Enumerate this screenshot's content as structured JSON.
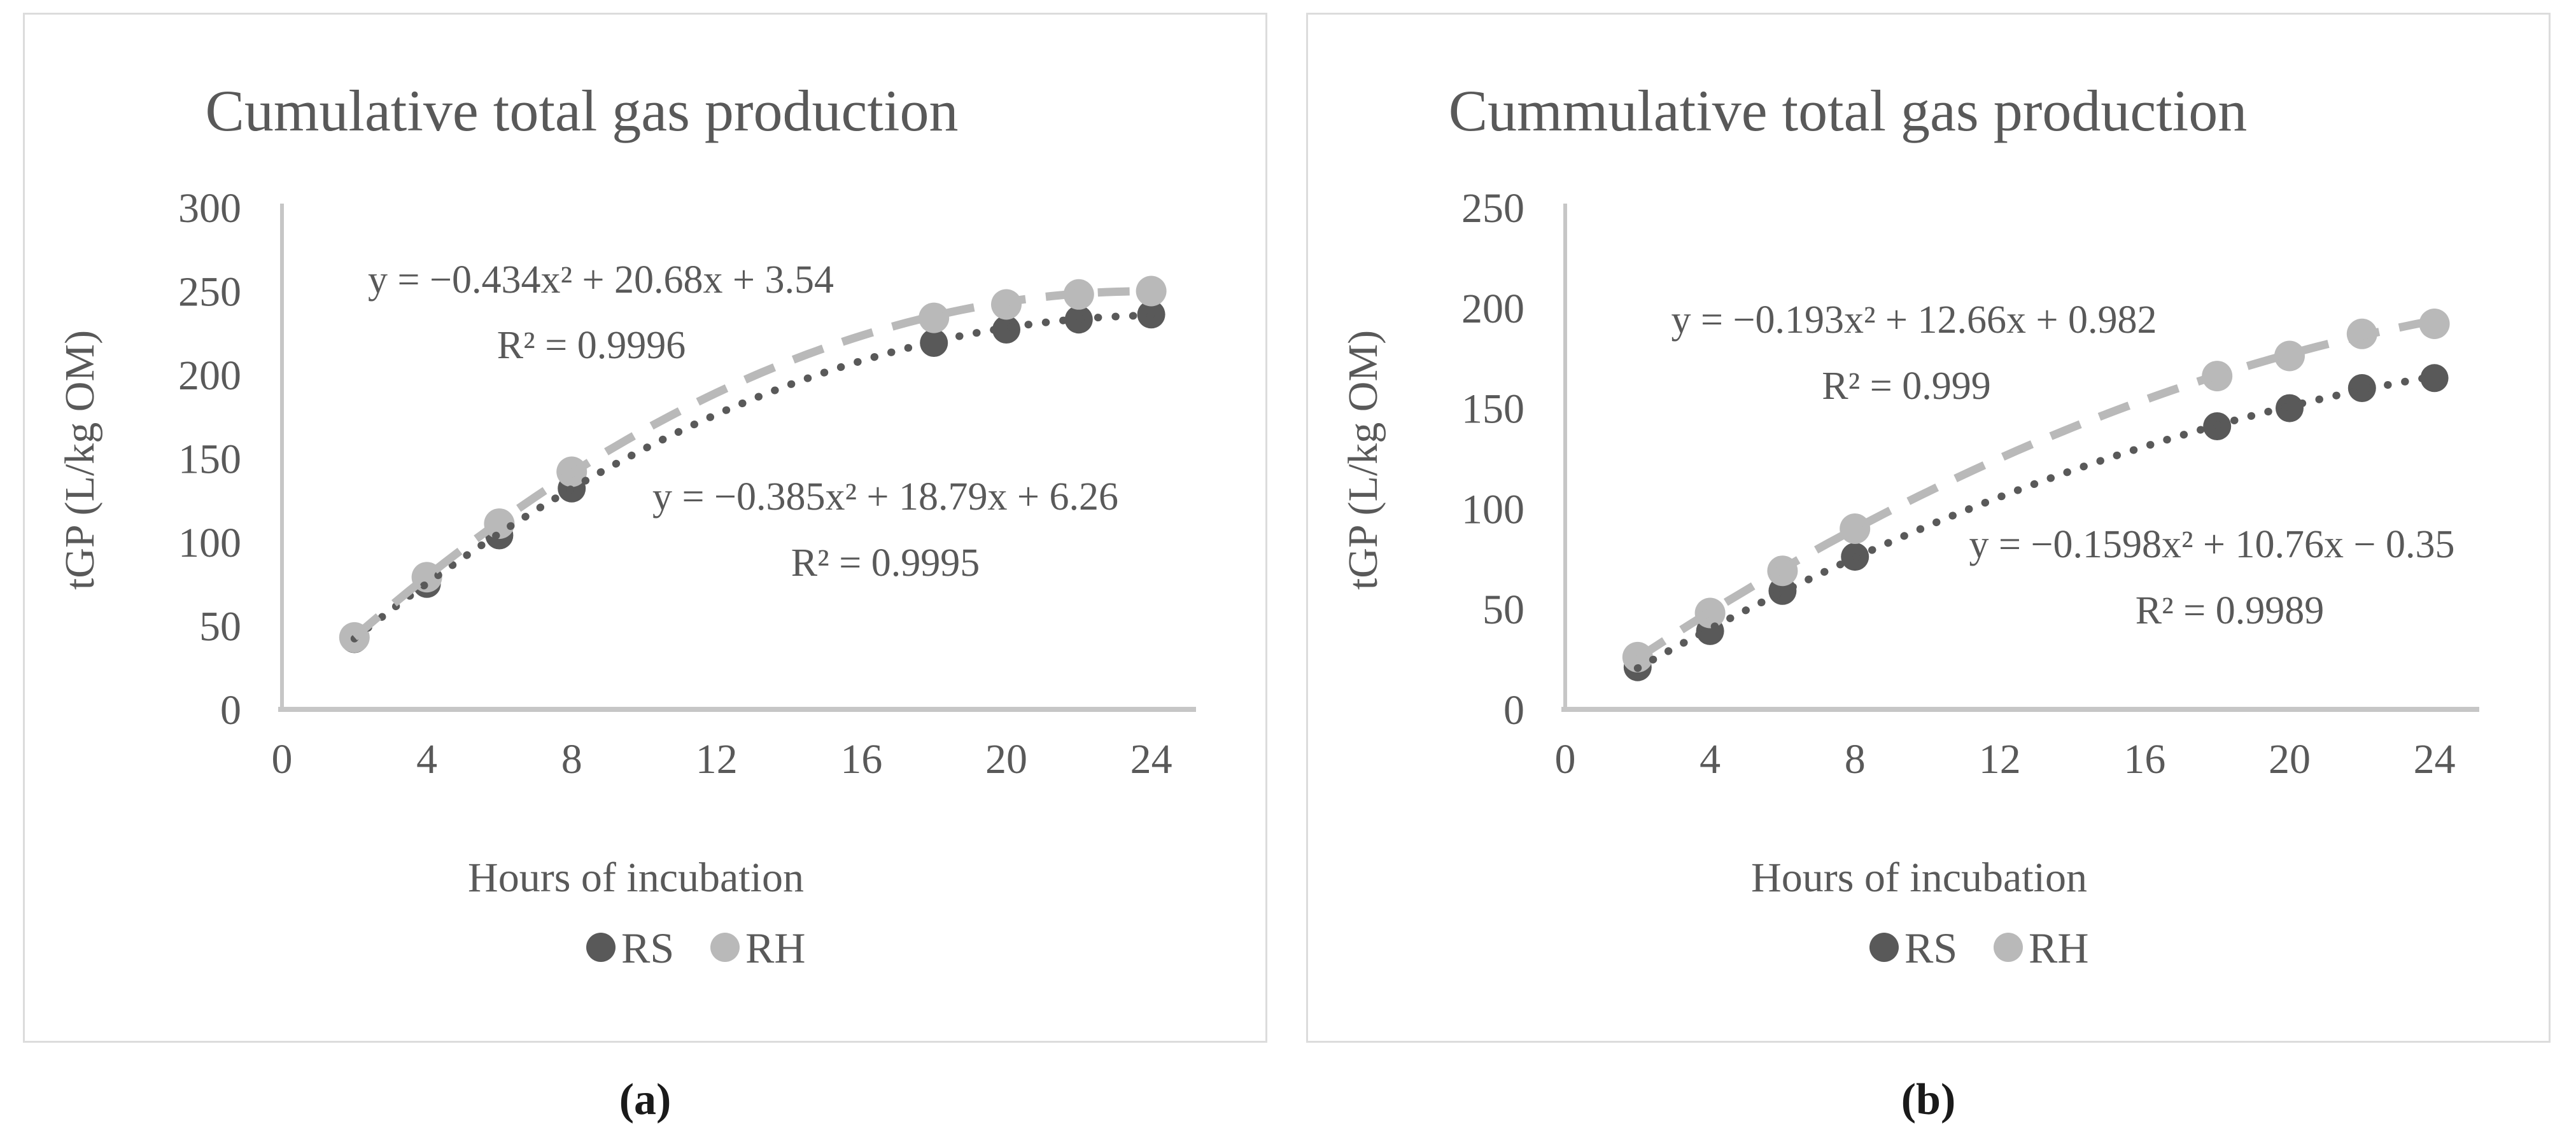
{
  "colors": {
    "rs": "#595959",
    "rh": "#b9b9b9",
    "text": "#595959",
    "axis": "#c6c6c6",
    "panel_border": "#dcdcdc"
  },
  "chart_data": [
    {
      "type": "scatter",
      "title": "Cumulative total gas production",
      "caption": "(a)",
      "xlabel": "Hours of incubation",
      "ylabel": "tGP (L/kg OM)",
      "x": [
        2,
        4,
        6,
        8,
        18,
        20,
        22,
        24
      ],
      "x_ticks": [
        0,
        4,
        8,
        12,
        16,
        20,
        24
      ],
      "y_ticks": [
        0,
        50,
        100,
        150,
        200,
        250,
        300
      ],
      "xlim": [
        0,
        25.2
      ],
      "ylim": [
        0,
        300
      ],
      "grid": false,
      "legend_position": "bottom",
      "series": [
        {
          "name": "RS",
          "color_key": "rs",
          "marker": "circle",
          "values": [
            42,
            75,
            104,
            132,
            219,
            227,
            233,
            236
          ],
          "trendline": {
            "style": "dotted",
            "a": -0.385,
            "b": 18.79,
            "c": 6.26,
            "equation": "y = −0.385x² + 18.79x + 6.26",
            "r2": "R² = 0.9995"
          }
        },
        {
          "name": "RH",
          "color_key": "rh",
          "marker": "circle",
          "values": [
            43,
            79,
            111,
            142,
            234,
            242,
            248,
            250
          ],
          "trendline": {
            "style": "dashed",
            "a": -0.434,
            "b": 20.68,
            "c": 3.54,
            "equation": "y = −0.434x² + 20.68x + 3.54",
            "r2": "R² = 0.9996"
          }
        }
      ]
    },
    {
      "type": "scatter",
      "title": "Cummulative total gas production",
      "caption": "(b)",
      "xlabel": "Hours of incubation",
      "ylabel": "tGP (L/kg OM)",
      "x": [
        2,
        4,
        6,
        8,
        18,
        20,
        22,
        24
      ],
      "x_ticks": [
        0,
        4,
        8,
        12,
        16,
        20,
        24
      ],
      "y_ticks": [
        0,
        50,
        100,
        150,
        200,
        250
      ],
      "xlim": [
        0,
        25.2
      ],
      "ylim": [
        0,
        250
      ],
      "grid": false,
      "legend_position": "bottom",
      "series": [
        {
          "name": "RS",
          "color_key": "rs",
          "marker": "circle",
          "values": [
            21,
            39,
            59,
            76,
            141,
            150,
            160,
            165
          ],
          "trendline": {
            "style": "dotted",
            "a": -0.1598,
            "b": 10.76,
            "c": -0.35,
            "equation": "y = −0.1598x² + 10.76x − 0.35",
            "r2": "R² = 0.9989"
          }
        },
        {
          "name": "RH",
          "color_key": "rh",
          "marker": "circle",
          "values": [
            26,
            48,
            69,
            90,
            166,
            176,
            187,
            192
          ],
          "trendline": {
            "style": "dashed",
            "a": -0.193,
            "b": 12.66,
            "c": 0.982,
            "equation": "y = −0.193x² + 12.66x + 0.982",
            "r2": "R² = 0.999"
          }
        }
      ]
    }
  ]
}
